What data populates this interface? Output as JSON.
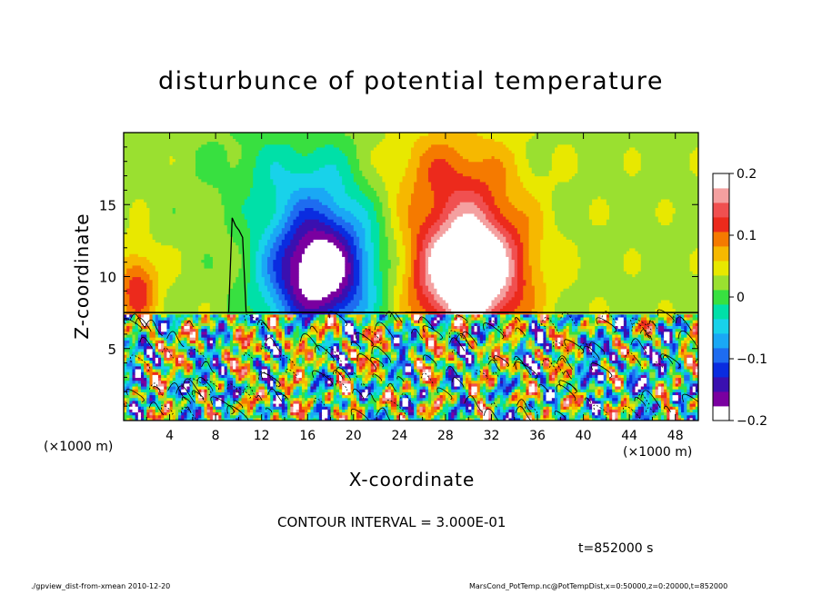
{
  "chart_data": {
    "type": "heatmap",
    "title": "disturbunce of potential temperature",
    "xlabel": "X-coordinate",
    "ylabel": "Z-coordinate",
    "x_unit_left": "(×1000 m)",
    "x_unit_right": "(×1000 m)",
    "xlim": [
      0,
      50
    ],
    "ylim": [
      0,
      20
    ],
    "x_ticks": [
      4,
      8,
      12,
      16,
      20,
      24,
      28,
      32,
      36,
      40,
      44,
      48
    ],
    "y_ticks": [
      5,
      10,
      15
    ],
    "colorbar": {
      "range": [
        -0.2,
        0.2
      ],
      "ticks": [
        {
          "value": 0.2,
          "label": "0.2"
        },
        {
          "value": 0.1,
          "label": "0.1"
        },
        {
          "value": 0,
          "label": "0"
        },
        {
          "value": -0.1,
          "label": "−0.1"
        },
        {
          "value": -0.2,
          "label": "−0.2"
        }
      ]
    },
    "features": [
      {
        "kind": "cold_anomaly",
        "x_center": 17,
        "z_center": 10.5,
        "min": -0.2
      },
      {
        "kind": "warm_anomaly",
        "x_center": 30,
        "z_center": 10.5,
        "max": 0.2
      },
      {
        "kind": "weak_warm",
        "x_center": 1.5,
        "z_center": 9,
        "max": 0.13
      },
      {
        "kind": "boundary_layer_turbulence",
        "z_top": 7.5
      }
    ],
    "contour_interval": "CONTOUR INTERVAL = 3.000E-01",
    "time_label": "t=852000 s"
  },
  "footer": {
    "left": "./gpview_dist-from-xmean  2010-12-20",
    "right": "MarsCond_PotTemp.nc@PotTempDist,x=0:50000,z=0:20000,t=852000"
  },
  "colors": {
    "scale": [
      "#7a00a0",
      "#3a10b0",
      "#0a2ce0",
      "#1e6cf0",
      "#1aa8f5",
      "#18d2ea",
      "#00e0a8",
      "#38e040",
      "#9ae030",
      "#e8e800",
      "#f6b800",
      "#f57a00",
      "#ec2a1c",
      "#f05050",
      "#f4a0a0"
    ]
  }
}
